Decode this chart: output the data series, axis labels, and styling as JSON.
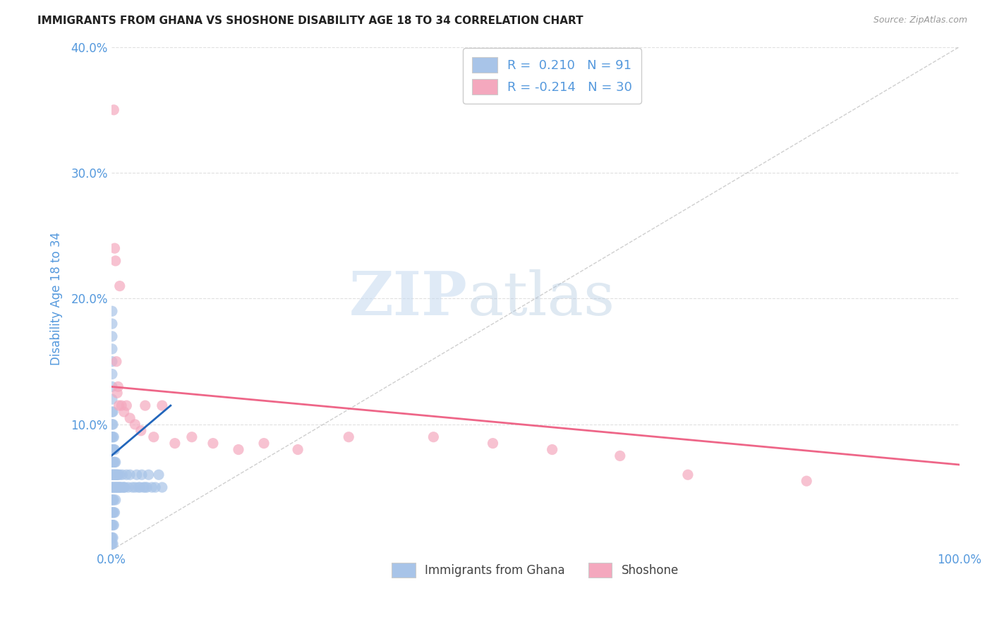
{
  "title": "IMMIGRANTS FROM GHANA VS SHOSHONE DISABILITY AGE 18 TO 34 CORRELATION CHART",
  "source": "Source: ZipAtlas.com",
  "ylabel": "Disability Age 18 to 34",
  "xlim": [
    0,
    1.0
  ],
  "ylim": [
    0,
    0.4
  ],
  "ghana_color": "#a8c4e8",
  "shoshone_color": "#f4a8be",
  "ghana_line_color": "#2266bb",
  "shoshone_line_color": "#ee6688",
  "diagonal_color": "#bbbbbb",
  "R_ghana": 0.21,
  "N_ghana": 91,
  "R_shoshone": -0.214,
  "N_shoshone": 30,
  "watermark_zip": "ZIP",
  "watermark_atlas": "atlas",
  "legend_labels": [
    "Immigrants from Ghana",
    "Shoshone"
  ],
  "title_color": "#222222",
  "tick_color": "#5599dd",
  "background_color": "#ffffff",
  "grid_color": "#dddddd",
  "ghana_points_x": [
    0.0,
    0.0,
    0.0,
    0.0,
    0.0,
    0.0,
    0.0,
    0.0,
    0.0,
    0.0,
    0.001,
    0.001,
    0.001,
    0.001,
    0.001,
    0.001,
    0.001,
    0.001,
    0.001,
    0.001,
    0.001,
    0.001,
    0.001,
    0.001,
    0.001,
    0.001,
    0.001,
    0.001,
    0.001,
    0.001,
    0.002,
    0.002,
    0.002,
    0.002,
    0.002,
    0.002,
    0.002,
    0.002,
    0.002,
    0.002,
    0.002,
    0.002,
    0.003,
    0.003,
    0.003,
    0.003,
    0.003,
    0.003,
    0.003,
    0.003,
    0.004,
    0.004,
    0.004,
    0.004,
    0.004,
    0.005,
    0.005,
    0.005,
    0.005,
    0.006,
    0.006,
    0.007,
    0.007,
    0.008,
    0.008,
    0.009,
    0.01,
    0.01,
    0.011,
    0.012,
    0.013,
    0.014,
    0.015,
    0.016,
    0.018,
    0.02,
    0.022,
    0.025,
    0.028,
    0.03,
    0.032,
    0.034,
    0.036,
    0.038,
    0.04,
    0.042,
    0.044,
    0.048,
    0.052,
    0.056,
    0.06
  ],
  "ghana_points_y": [
    0.05,
    0.06,
    0.07,
    0.08,
    0.09,
    0.04,
    0.03,
    0.02,
    0.01,
    0.005,
    0.05,
    0.06,
    0.07,
    0.08,
    0.09,
    0.1,
    0.11,
    0.12,
    0.04,
    0.03,
    0.02,
    0.01,
    0.005,
    0.13,
    0.14,
    0.15,
    0.16,
    0.17,
    0.18,
    0.19,
    0.05,
    0.06,
    0.07,
    0.08,
    0.09,
    0.1,
    0.11,
    0.04,
    0.03,
    0.02,
    0.01,
    0.005,
    0.05,
    0.06,
    0.07,
    0.08,
    0.09,
    0.04,
    0.03,
    0.02,
    0.05,
    0.06,
    0.07,
    0.08,
    0.03,
    0.05,
    0.06,
    0.07,
    0.04,
    0.05,
    0.06,
    0.05,
    0.06,
    0.05,
    0.06,
    0.05,
    0.05,
    0.06,
    0.05,
    0.05,
    0.06,
    0.05,
    0.05,
    0.05,
    0.06,
    0.05,
    0.06,
    0.05,
    0.05,
    0.06,
    0.05,
    0.05,
    0.06,
    0.05,
    0.05,
    0.05,
    0.06,
    0.05,
    0.05,
    0.06,
    0.05
  ],
  "shoshone_points_x": [
    0.003,
    0.004,
    0.005,
    0.006,
    0.007,
    0.008,
    0.009,
    0.01,
    0.012,
    0.015,
    0.018,
    0.022,
    0.028,
    0.035,
    0.04,
    0.05,
    0.06,
    0.075,
    0.095,
    0.12,
    0.15,
    0.18,
    0.22,
    0.28,
    0.38,
    0.45,
    0.52,
    0.6,
    0.68,
    0.82
  ],
  "shoshone_points_y": [
    0.35,
    0.24,
    0.23,
    0.15,
    0.125,
    0.13,
    0.115,
    0.21,
    0.115,
    0.11,
    0.115,
    0.105,
    0.1,
    0.095,
    0.115,
    0.09,
    0.115,
    0.085,
    0.09,
    0.085,
    0.08,
    0.085,
    0.08,
    0.09,
    0.09,
    0.085,
    0.08,
    0.075,
    0.06,
    0.055
  ],
  "ghana_line_x": [
    0.0,
    0.07
  ],
  "ghana_line_y": [
    0.075,
    0.115
  ],
  "shoshone_line_x": [
    0.0,
    1.0
  ],
  "shoshone_line_y": [
    0.13,
    0.068
  ]
}
